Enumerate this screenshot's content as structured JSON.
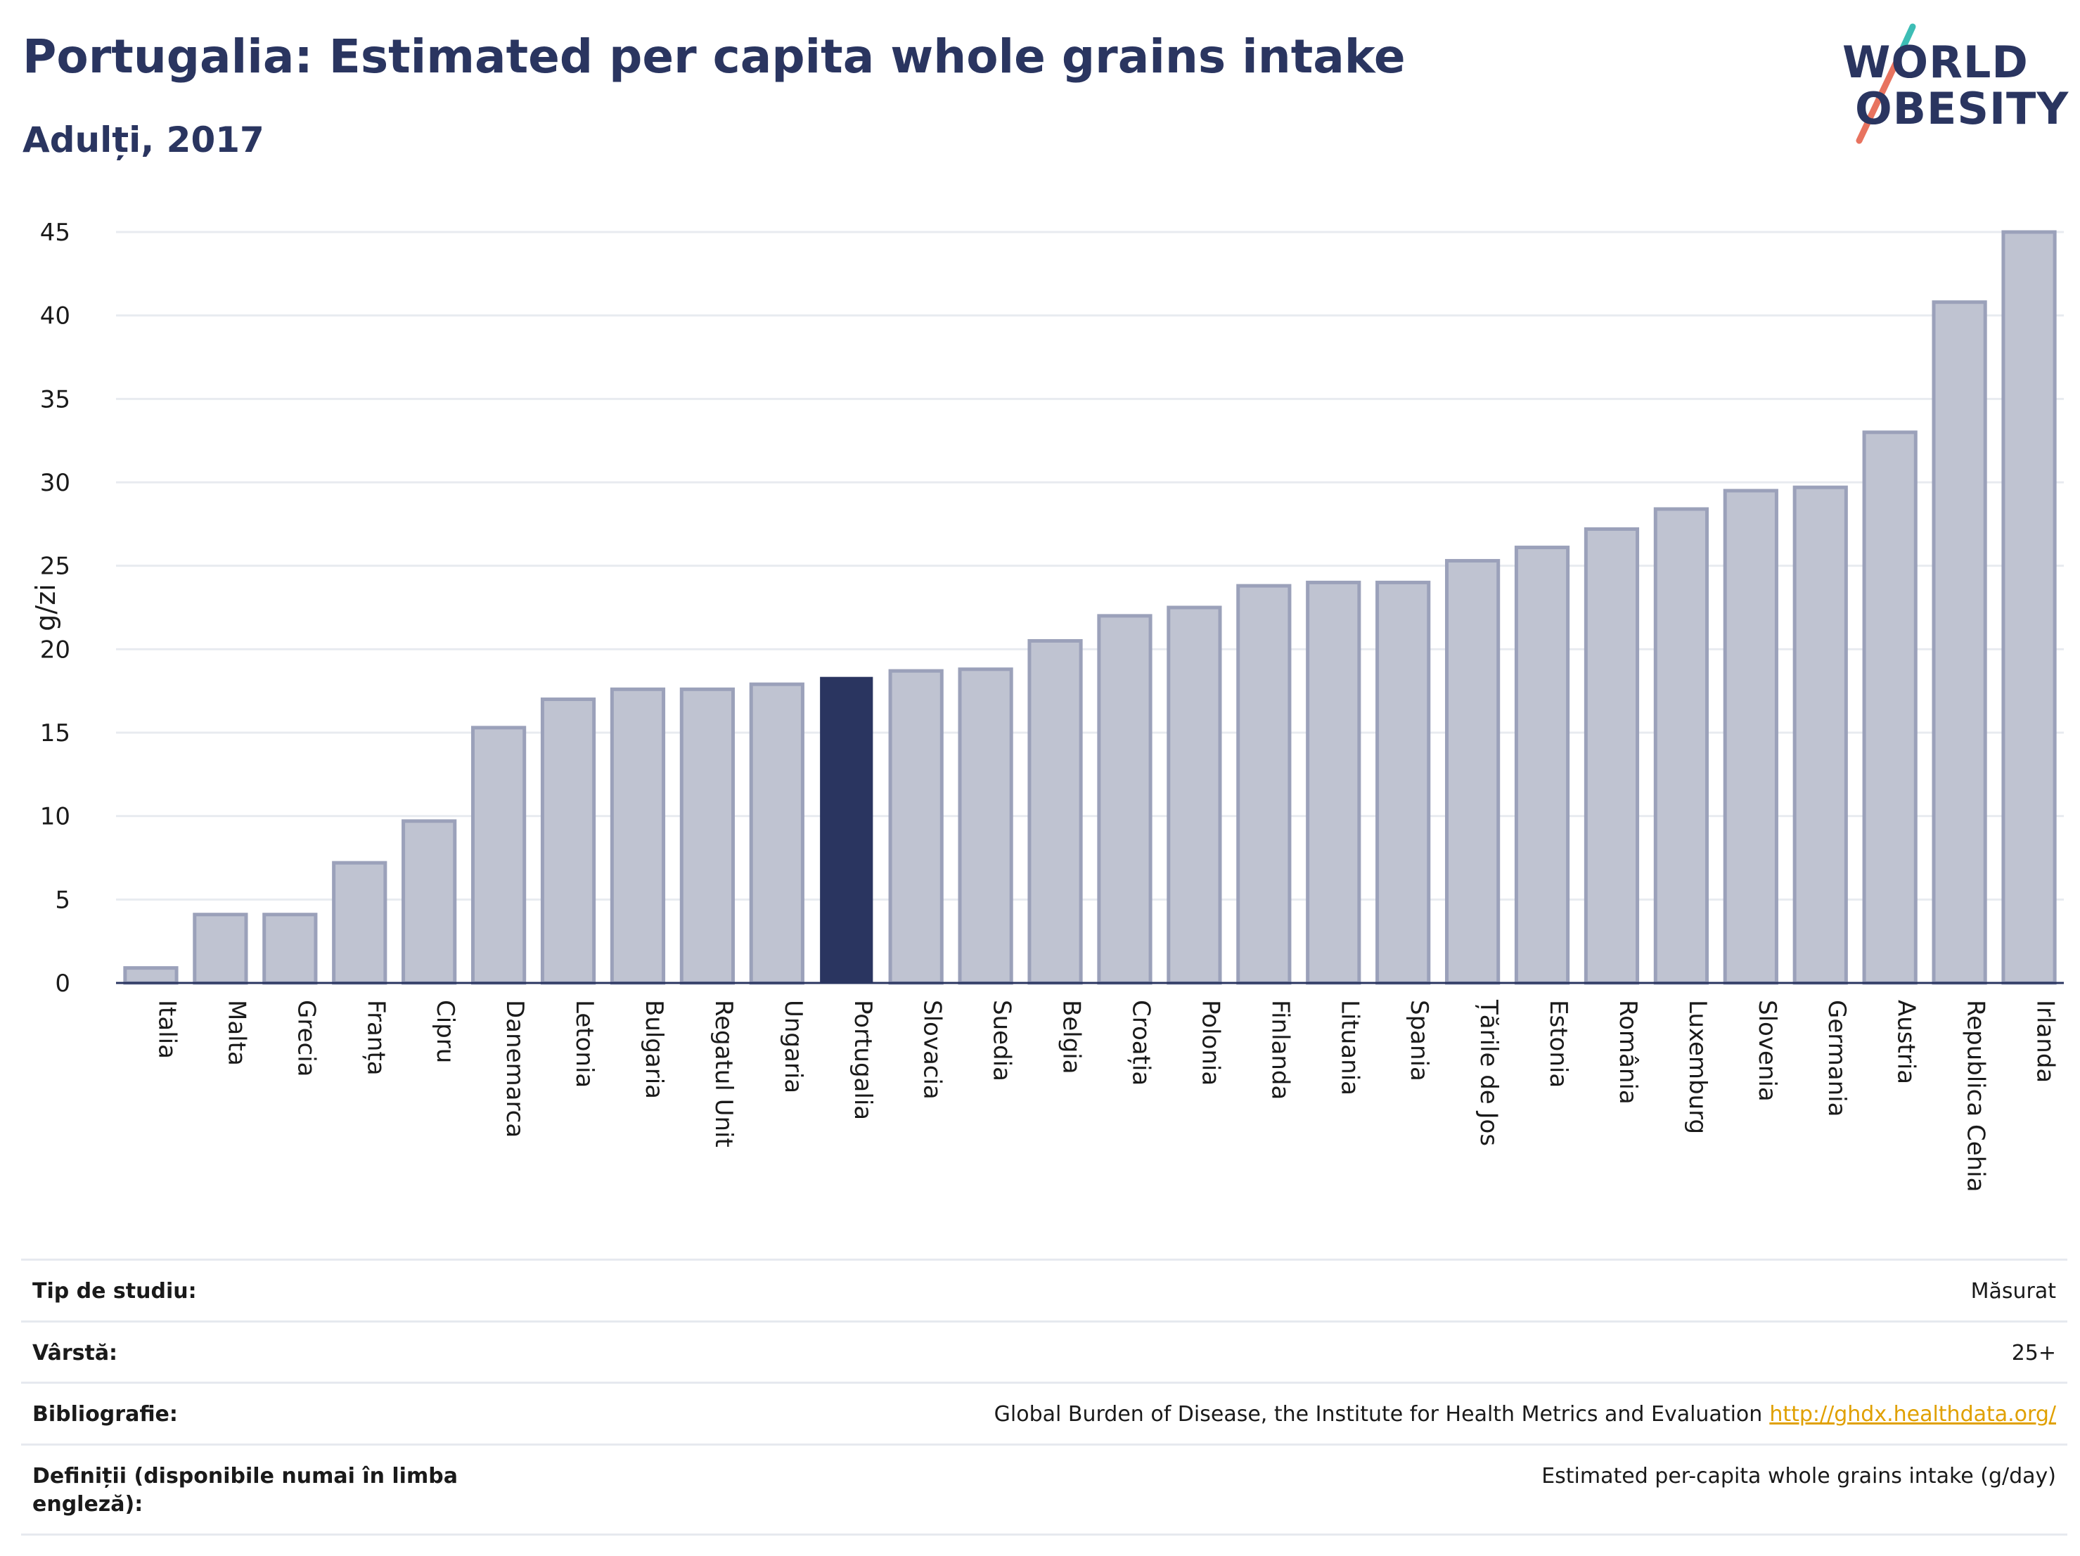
{
  "header": {
    "title": "Portugalia: Estimated per capita whole grains intake",
    "subtitle": "Adulți, 2017"
  },
  "logo": {
    "line1": "WORLD",
    "line2": "OBESITY",
    "color_text": "#2a3560",
    "color_slash_top": "#3dbdb5",
    "color_slash_bottom": "#e8735f"
  },
  "colors": {
    "bar_default_fill": "#bfc3d1",
    "bar_default_stroke": "#9ba1ba",
    "bar_highlight": "#2a3560",
    "axis_text": "#1a1a1a",
    "gridline": "#e8ebf0"
  },
  "chart_data": {
    "type": "bar",
    "title": "Portugalia: Estimated per capita whole grains intake",
    "subtitle": "Adulți, 2017",
    "xlabel": "",
    "ylabel": "g/zi",
    "ylim": [
      0,
      45
    ],
    "yticks": [
      0,
      5,
      10,
      15,
      20,
      25,
      30,
      35,
      40,
      45
    ],
    "grid": true,
    "highlight": "Portugalia",
    "categories": [
      "Italia",
      "Malta",
      "Grecia",
      "Franța",
      "Cipru",
      "Danemarca",
      "Letonia",
      "Bulgaria",
      "Regatul Unit",
      "Ungaria",
      "Portugalia",
      "Slovacia",
      "Suedia",
      "Belgia",
      "Croația",
      "Polonia",
      "Finlanda",
      "Lituania",
      "Spania",
      "Țările de Jos",
      "Estonia",
      "România",
      "Luxemburg",
      "Slovenia",
      "Germania",
      "Austria",
      "Republica Cehia",
      "Irlanda"
    ],
    "values": [
      0.9,
      4.1,
      4.1,
      7.2,
      9.7,
      15.3,
      17.0,
      17.6,
      17.6,
      17.9,
      18.3,
      18.7,
      18.8,
      20.5,
      22.0,
      22.5,
      23.8,
      24.0,
      24.0,
      25.3,
      26.1,
      27.2,
      28.4,
      29.5,
      29.7,
      33.0,
      40.8,
      45.0
    ]
  },
  "info": {
    "rows": [
      {
        "label": "Tip de studiu:",
        "value": "Măsurat",
        "link": ""
      },
      {
        "label": "Vârstă:",
        "value": "25+",
        "link": ""
      },
      {
        "label": "Bibliografie:",
        "value": "Global Burden of Disease, the Institute for Health Metrics and Evaluation",
        "link": "http://ghdx.healthdata.org/"
      },
      {
        "label": "Definiții (disponibile numai în limba engleză):",
        "value": "Estimated per-capita whole grains intake (g/day)",
        "link": ""
      }
    ]
  }
}
